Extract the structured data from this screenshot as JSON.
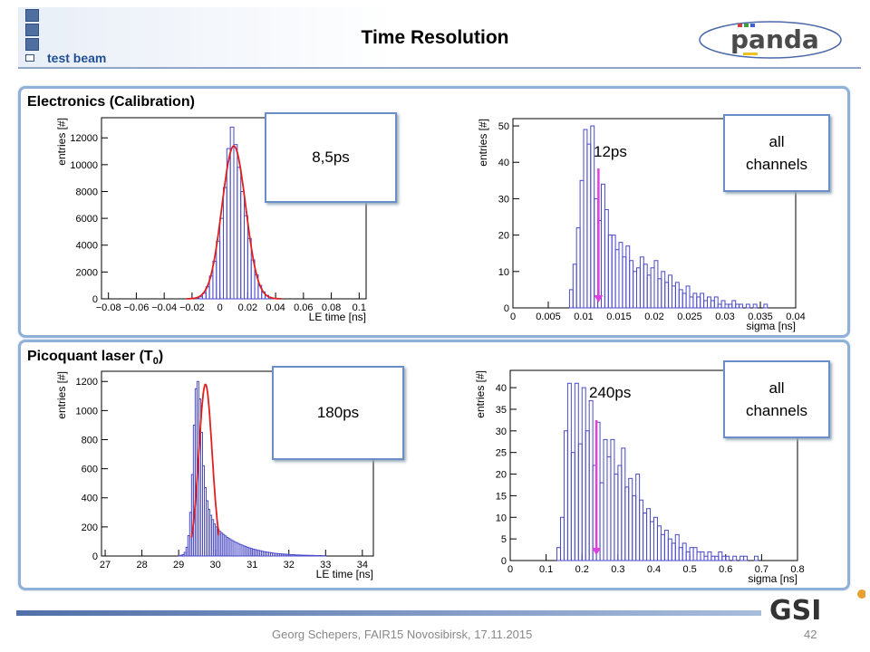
{
  "header": {
    "title": "Time Resolution",
    "subtitle": "test beam",
    "logo_text": "panda"
  },
  "sections": [
    {
      "title": "Electronics (Calibration)"
    },
    {
      "title_main": "Picoquant laser (T",
      "title_sub": "0",
      "title_end": ")"
    }
  ],
  "callouts": {
    "c1": "8,5ps",
    "c2_line1": "all",
    "c2_line2": "channels",
    "c3": "180ps",
    "c4_line1": "all",
    "c4_line2": "channels"
  },
  "annotations": {
    "a1": "12ps",
    "a2": "240ps"
  },
  "footer": {
    "text": "Georg Schepers, FAIR15 Novosibirsk, 17.11.2015",
    "page": "42",
    "gsi_logo": "GSI"
  },
  "colors": {
    "hist": "#4a4ac8",
    "fit": "#e02020",
    "arrow": "#e040e0",
    "frame": "#8fb0d8"
  },
  "chart_data": [
    {
      "type": "bar",
      "xlabel": "LE time [ns]",
      "ylabel": "entries [#]",
      "xlim": [
        -0.085,
        0.105
      ],
      "ylim": [
        0,
        13500
      ],
      "xticks": [
        -0.08,
        -0.06,
        -0.04,
        -0.02,
        0,
        0.02,
        0.04,
        0.06,
        0.08,
        0.1
      ],
      "xtick_labels": [
        "−0.08",
        "−0.06",
        "−0.04",
        "−0.02",
        "0",
        "0.02",
        "0.04",
        "0.06",
        "0.08",
        "0.1"
      ],
      "yticks": [
        0,
        2000,
        4000,
        6000,
        8000,
        10000,
        12000
      ],
      "ytick_labels": [
        "0",
        "2000",
        "4000",
        "6000",
        "8000",
        "10000",
        "12000"
      ],
      "bin_start": -0.02,
      "bin_width": 0.0025,
      "values": [
        0,
        40,
        150,
        420,
        900,
        1700,
        2800,
        4300,
        6000,
        8300,
        11200,
        12800,
        11500,
        9800,
        8000,
        6200,
        4500,
        2900,
        1800,
        1000,
        520,
        260,
        110,
        40,
        0
      ],
      "fit": {
        "type": "gauss",
        "amplitude": 11400,
        "mean": 0.01,
        "sigma": 0.0085
      }
    },
    {
      "type": "bar",
      "xlabel": "sigma [ns]",
      "ylabel": "entries [#]",
      "xlim": [
        0,
        0.04
      ],
      "ylim": [
        0,
        52
      ],
      "xticks": [
        0,
        0.005,
        0.01,
        0.015,
        0.02,
        0.025,
        0.03,
        0.035,
        0.04
      ],
      "xtick_labels": [
        "0",
        "0.005",
        "0.01",
        "0.015",
        "0.02",
        "0.025",
        "0.03",
        "0.035",
        "0.04"
      ],
      "yticks": [
        0,
        10,
        20,
        30,
        40,
        50
      ],
      "ytick_labels": [
        "0",
        "10",
        "20",
        "30",
        "40",
        "50"
      ],
      "bin_start": 0.008,
      "bin_width": 0.0005,
      "values": [
        5,
        12,
        22,
        35,
        49,
        45,
        50,
        30,
        24,
        34,
        27,
        20,
        20,
        16,
        18,
        14,
        17,
        13,
        10,
        11,
        14,
        12,
        9,
        11,
        13,
        8,
        10,
        7,
        9,
        6,
        7,
        5,
        4,
        6,
        3,
        4,
        3,
        4,
        2,
        3,
        2,
        3,
        1,
        2,
        1,
        1,
        2,
        1,
        1,
        0,
        1,
        0,
        1,
        0,
        0,
        1
      ],
      "marker": {
        "x": 0.0121,
        "label": "12ps"
      }
    },
    {
      "type": "bar",
      "xlabel": "LE time [ns]",
      "ylabel": "entries [#]",
      "xlim": [
        26.9,
        34.3
      ],
      "ylim": [
        0,
        1270
      ],
      "xticks": [
        27,
        28,
        29,
        30,
        31,
        32,
        33,
        34
      ],
      "xtick_labels": [
        "27",
        "28",
        "29",
        "30",
        "31",
        "32",
        "33",
        "34"
      ],
      "yticks": [
        0,
        200,
        400,
        600,
        800,
        1000,
        1200
      ],
      "ytick_labels": [
        "0",
        "200",
        "400",
        "600",
        "800",
        "1000",
        "1200"
      ],
      "bin_start": 29.0,
      "bin_width": 0.05,
      "values": [
        2,
        5,
        10,
        25,
        60,
        140,
        300,
        560,
        900,
        1150,
        1200,
        1080,
        850,
        620,
        470,
        380,
        320,
        280,
        250,
        220,
        200,
        185,
        170,
        158,
        148,
        138,
        128,
        120,
        112,
        105,
        98,
        92,
        86,
        80,
        75,
        70,
        65,
        60,
        56,
        52,
        48,
        45,
        42,
        39,
        36,
        33,
        30,
        28,
        26,
        24,
        22,
        20,
        18,
        17,
        16,
        15,
        14,
        13,
        12,
        11,
        10,
        9,
        9,
        8,
        7,
        7,
        6,
        6,
        5,
        5,
        5,
        4,
        4,
        4,
        3,
        3,
        3,
        3,
        2,
        2
      ],
      "fit": {
        "type": "gauss",
        "amplitude": 1180,
        "mean": 29.73,
        "sigma": 0.18,
        "range": [
          29.35,
          30.1
        ]
      }
    },
    {
      "type": "bar",
      "xlabel": "sigma [ns]",
      "ylabel": "entries [#]",
      "xlim": [
        0,
        0.8
      ],
      "ylim": [
        0,
        44
      ],
      "xticks": [
        0,
        0.1,
        0.2,
        0.3,
        0.4,
        0.5,
        0.6,
        0.7,
        0.8
      ],
      "xtick_labels": [
        "0",
        "0.1",
        "0.2",
        "0.3",
        "0.4",
        "0.5",
        "0.6",
        "0.7",
        "0.8"
      ],
      "yticks": [
        0,
        5,
        10,
        15,
        20,
        25,
        30,
        35,
        40
      ],
      "ytick_labels": [
        "0",
        "5",
        "10",
        "15",
        "20",
        "25",
        "30",
        "35",
        "40"
      ],
      "bin_start": 0.13,
      "bin_width": 0.01,
      "values": [
        3,
        10,
        30,
        41,
        25,
        41,
        27,
        40,
        30,
        37,
        22,
        32,
        18,
        28,
        24,
        28,
        20,
        22,
        26,
        17,
        19,
        15,
        20,
        14,
        11,
        12,
        9,
        10,
        8,
        6,
        7,
        5,
        4,
        6,
        3,
        4,
        2,
        3,
        3,
        2,
        2,
        1,
        2,
        1,
        1,
        2,
        1,
        1,
        0,
        1,
        0,
        1,
        1,
        0,
        0,
        1
      ],
      "marker": {
        "x": 0.24,
        "label": "240ps"
      }
    }
  ]
}
